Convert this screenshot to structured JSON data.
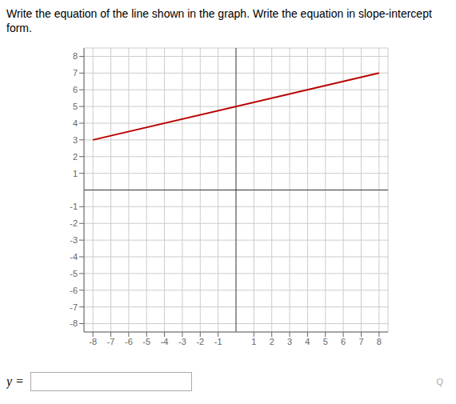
{
  "chart_data": {
    "type": "line",
    "title": "Write the equation of the line shown in the graph. Write the equation in slope-intercept form.",
    "x": [
      -8,
      8
    ],
    "values": [
      3,
      7
    ],
    "color": "#bb0000",
    "xlim": [
      -8.5,
      8.5
    ],
    "ylim": [
      -8.5,
      8.5
    ],
    "xticks": [
      -8,
      -7,
      -6,
      -5,
      -4,
      -3,
      -2,
      -1,
      1,
      2,
      3,
      4,
      5,
      6,
      7,
      8
    ],
    "yticks": [
      -8,
      -7,
      -6,
      -5,
      -4,
      -3,
      -2,
      -1,
      1,
      2,
      3,
      4,
      5,
      6,
      7,
      8
    ],
    "grid": true,
    "annotations": [
      "y =",
      "Q"
    ]
  }
}
